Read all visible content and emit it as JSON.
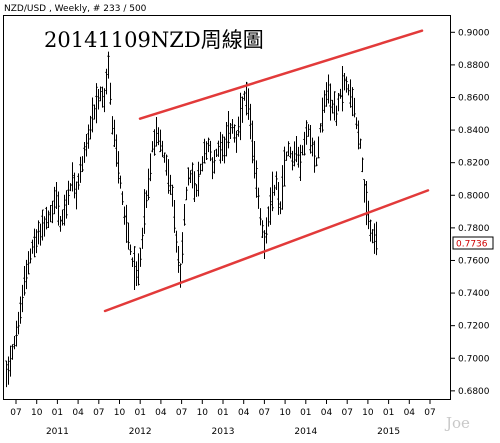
{
  "header": {
    "symbol_label": "NZD/USD , Weekly, # 233 / 500"
  },
  "watermark": "Joe",
  "chart_data": {
    "type": "candlestick",
    "title": "20141109NZD周線圖",
    "ylim": [
      0.675,
      0.91
    ],
    "yticks": [
      "0.9000",
      "0.8800",
      "0.8600",
      "0.8400",
      "0.8200",
      "0.8000",
      "0.7800",
      "0.7600",
      "0.7400",
      "0.7200",
      "0.7000",
      "0.6800"
    ],
    "ytick_values": [
      0.9,
      0.88,
      0.86,
      0.84,
      0.82,
      0.8,
      0.78,
      0.76,
      0.74,
      0.72,
      0.7,
      0.68
    ],
    "current_price": "0.7736",
    "x_month_ticks": [
      "07",
      "10",
      "01",
      "04",
      "07",
      "10",
      "01",
      "04",
      "07",
      "10",
      "01",
      "04",
      "07",
      "10",
      "01",
      "04",
      "07",
      "10",
      "01",
      "04",
      "07"
    ],
    "x_year_labels": [
      "2011",
      "2012",
      "2013",
      "2014",
      "2015"
    ],
    "price_path": [
      [
        0,
        0.68
      ],
      [
        4,
        0.688
      ],
      [
        8,
        0.695
      ],
      [
        12,
        0.705
      ],
      [
        16,
        0.715
      ],
      [
        20,
        0.728
      ],
      [
        24,
        0.745
      ],
      [
        28,
        0.76
      ],
      [
        32,
        0.768
      ],
      [
        36,
        0.772
      ],
      [
        40,
        0.778
      ],
      [
        44,
        0.782
      ],
      [
        48,
        0.786
      ],
      [
        52,
        0.79
      ],
      [
        56,
        0.8
      ],
      [
        60,
        0.782
      ],
      [
        64,
        0.79
      ],
      [
        68,
        0.8
      ],
      [
        72,
        0.81
      ],
      [
        76,
        0.8
      ],
      [
        80,
        0.815
      ],
      [
        84,
        0.826
      ],
      [
        88,
        0.836
      ],
      [
        92,
        0.845
      ],
      [
        96,
        0.855
      ],
      [
        100,
        0.862
      ],
      [
        104,
        0.858
      ],
      [
        106,
        0.87
      ],
      [
        108,
        0.878
      ],
      [
        110,
        0.862
      ],
      [
        112,
        0.843
      ],
      [
        116,
        0.828
      ],
      [
        120,
        0.808
      ],
      [
        124,
        0.788
      ],
      [
        128,
        0.775
      ],
      [
        132,
        0.76
      ],
      [
        136,
        0.75
      ],
      [
        140,
        0.762
      ],
      [
        144,
        0.79
      ],
      [
        148,
        0.805
      ],
      [
        152,
        0.83
      ],
      [
        156,
        0.838
      ],
      [
        160,
        0.835
      ],
      [
        164,
        0.822
      ],
      [
        168,
        0.814
      ],
      [
        172,
        0.798
      ],
      [
        176,
        0.772
      ],
      [
        180,
        0.75
      ],
      [
        184,
        0.79
      ],
      [
        188,
        0.81
      ],
      [
        192,
        0.812
      ],
      [
        196,
        0.802
      ],
      [
        200,
        0.815
      ],
      [
        204,
        0.825
      ],
      [
        208,
        0.832
      ],
      [
        212,
        0.818
      ],
      [
        216,
        0.826
      ],
      [
        220,
        0.832
      ],
      [
        224,
        0.83
      ],
      [
        228,
        0.838
      ],
      [
        232,
        0.843
      ],
      [
        236,
        0.832
      ],
      [
        240,
        0.848
      ],
      [
        244,
        0.86
      ],
      [
        248,
        0.856
      ],
      [
        252,
        0.832
      ],
      [
        256,
        0.81
      ],
      [
        260,
        0.788
      ],
      [
        264,
        0.772
      ],
      [
        268,
        0.785
      ],
      [
        272,
        0.8
      ],
      [
        276,
        0.808
      ],
      [
        280,
        0.792
      ],
      [
        284,
        0.818
      ],
      [
        288,
        0.83
      ],
      [
        292,
        0.822
      ],
      [
        296,
        0.828
      ],
      [
        300,
        0.82
      ],
      [
        304,
        0.833
      ],
      [
        308,
        0.84
      ],
      [
        312,
        0.828
      ],
      [
        316,
        0.82
      ],
      [
        320,
        0.842
      ],
      [
        324,
        0.858
      ],
      [
        328,
        0.864
      ],
      [
        332,
        0.855
      ],
      [
        336,
        0.85
      ],
      [
        340,
        0.862
      ],
      [
        344,
        0.87
      ],
      [
        348,
        0.865
      ],
      [
        352,
        0.86
      ],
      [
        356,
        0.845
      ],
      [
        360,
        0.832
      ],
      [
        364,
        0.802
      ],
      [
        368,
        0.785
      ],
      [
        372,
        0.775
      ],
      [
        376,
        0.773
      ]
    ],
    "trend_lines": [
      {
        "name": "upper",
        "from": [
          140,
          0.847
        ],
        "to": [
          422,
          0.901
        ]
      },
      {
        "name": "lower",
        "from": [
          105,
          0.729
        ],
        "to": [
          428,
          0.803
        ]
      }
    ],
    "grid": false
  }
}
